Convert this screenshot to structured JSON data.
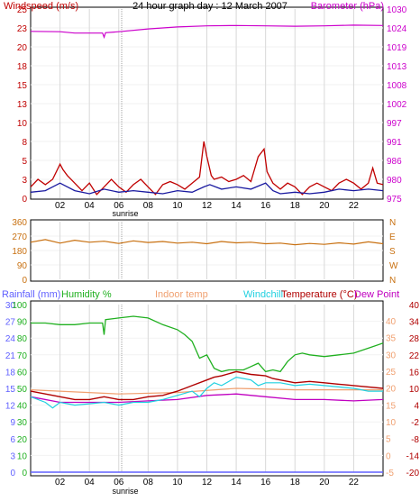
{
  "title": "24 hour graph day : 12 March 2007",
  "sunrise_label": "sunrise",
  "colors": {
    "wind": "#c00000",
    "wind_avg": "#1a1aa0",
    "baro": "#cc00cc",
    "dir": "#c87010",
    "humidity": "#20b020",
    "rain": "#6060ff",
    "indoor": "#f0a070",
    "windchill": "#20d0e0",
    "temp": "#b00000",
    "dewpoint": "#c000c0",
    "grid": "#d8d8d8",
    "sun": "#a0a0a0"
  },
  "x_ticks": [
    "02",
    "04",
    "06",
    "08",
    "10",
    "12",
    "14",
    "16",
    "18",
    "20",
    "22"
  ],
  "chart_data": [
    {
      "type": "line",
      "name": "wind-barometer",
      "left_label": "Windspeed (m/s)",
      "right_label": "Barometer (hPa)",
      "left_ticks": [
        "0",
        "3",
        "5",
        "8",
        "10",
        "13",
        "15",
        "18",
        "20",
        "23",
        "25"
      ],
      "right_ticks": [
        "975",
        "980",
        "986",
        "991",
        "997",
        "1002",
        "1008",
        "1013",
        "1019",
        "1024",
        "1030"
      ],
      "ylim_left": [
        0,
        25
      ],
      "ylim_right": [
        975,
        1030
      ],
      "series": [
        {
          "key": "gust",
          "x": [
            0.0,
            0.5,
            1.0,
            1.5,
            2.0,
            2.2,
            2.5,
            3.0,
            3.5,
            4.0,
            4.5,
            5.0,
            5.5,
            6.0,
            6.5,
            7.0,
            7.5,
            8.0,
            8.5,
            9.0,
            9.5,
            10.0,
            10.5,
            11.0,
            11.5,
            11.8,
            12.0,
            12.3,
            12.5,
            13.0,
            13.5,
            14.0,
            14.5,
            15.0,
            15.5,
            15.9,
            16.1,
            16.5,
            17.0,
            17.5,
            18.0,
            18.5,
            19.0,
            19.5,
            20.0,
            20.5,
            21.0,
            21.5,
            22.0,
            22.5,
            23.0,
            23.3,
            23.6,
            24.0
          ],
          "y": [
            1.5,
            2.5,
            1.8,
            2.5,
            4.5,
            3.8,
            3.0,
            2.0,
            1.0,
            2.0,
            0.5,
            1.5,
            2.5,
            1.5,
            0.8,
            1.8,
            2.5,
            1.5,
            0.5,
            1.8,
            2.2,
            1.8,
            1.2,
            2.0,
            2.8,
            7.5,
            5.5,
            3.0,
            2.5,
            2.8,
            2.2,
            2.5,
            3.0,
            2.2,
            5.5,
            6.5,
            3.5,
            2.0,
            1.2,
            2.0,
            1.5,
            0.5,
            1.5,
            2.0,
            1.5,
            1.0,
            2.0,
            2.5,
            2.0,
            1.2,
            2.0,
            4.0,
            2.0,
            1.8
          ]
        },
        {
          "key": "average",
          "x": [
            0.0,
            1.0,
            2.0,
            3.0,
            4.0,
            5.0,
            6.0,
            7.0,
            8.0,
            9.0,
            10.0,
            11.0,
            11.8,
            12.2,
            13.0,
            14.0,
            15.0,
            16.0,
            16.5,
            17.0,
            18.0,
            19.0,
            20.0,
            21.0,
            22.0,
            23.0,
            24.0
          ],
          "y": [
            0.8,
            1.0,
            2.0,
            1.0,
            0.6,
            1.2,
            0.8,
            1.0,
            0.8,
            0.6,
            1.0,
            0.8,
            1.5,
            1.8,
            1.2,
            1.5,
            1.2,
            2.0,
            1.0,
            0.6,
            0.8,
            0.6,
            0.8,
            1.2,
            1.0,
            1.2,
            1.0
          ]
        },
        {
          "key": "barometer",
          "axis": "right",
          "x": [
            0,
            2,
            3,
            4,
            4.9,
            5.0,
            5.1,
            6,
            8,
            10,
            12,
            14,
            16,
            18,
            20,
            22,
            24
          ],
          "y": [
            1023.5,
            1023.4,
            1023.0,
            1023.0,
            1023.0,
            1021.8,
            1023.1,
            1023.4,
            1024.2,
            1024.8,
            1025.1,
            1025.2,
            1025.1,
            1025.0,
            1025.1,
            1025.3,
            1025.2
          ]
        }
      ]
    },
    {
      "type": "line",
      "name": "wind-direction",
      "left_ticks": [
        "0",
        "90",
        "180",
        "270",
        "360"
      ],
      "right_ticks": [
        "N",
        "W",
        "S",
        "E",
        "N"
      ],
      "ylim": [
        0,
        360
      ],
      "series": [
        {
          "key": "direction",
          "x": [
            0,
            1,
            2,
            3,
            4,
            5,
            6,
            7,
            8,
            9,
            10,
            11,
            12,
            13,
            14,
            15,
            16,
            17,
            18,
            19,
            20,
            21,
            22,
            23,
            24
          ],
          "y": [
            232,
            248,
            226,
            244,
            232,
            238,
            224,
            240,
            230,
            236,
            226,
            232,
            222,
            236,
            228,
            232,
            222,
            226,
            216,
            224,
            218,
            228,
            220,
            234,
            222
          ]
        }
      ]
    },
    {
      "type": "line",
      "name": "temperature-humidity",
      "top_labels": [
        "Rainfall (mm)",
        "Humidity %",
        "Indoor temp",
        "Windchill",
        "Temperature (°C)",
        "Dew Point"
      ],
      "rain_ticks": [
        "0",
        "3",
        "6",
        "9",
        "12",
        "15",
        "18",
        "21",
        "24",
        "27",
        "30"
      ],
      "humidity_ticks": [
        "0",
        "10",
        "20",
        "30",
        "40",
        "50",
        "60",
        "70",
        "80",
        "90",
        "100"
      ],
      "indoor_ticks": [
        "-5",
        "0",
        "5",
        "10",
        "15",
        "20",
        "25",
        "30",
        "35",
        "40"
      ],
      "temp_ticks": [
        "-20",
        "-14",
        "-8",
        "-2",
        "4",
        "10",
        "16",
        "22",
        "28",
        "34",
        "40"
      ],
      "ylim_humidity": [
        0,
        100
      ],
      "ylim_temp": [
        -20,
        40
      ],
      "series": [
        {
          "key": "humidity",
          "x": [
            0,
            1,
            2,
            3,
            4,
            4.9,
            5.0,
            5.1,
            6,
            7,
            8,
            9,
            10,
            10.5,
            11,
            11.5,
            12,
            12.5,
            13,
            13.5,
            14,
            14.5,
            15,
            15.5,
            16,
            16.5,
            17,
            17.5,
            18,
            18.5,
            19,
            20,
            21,
            22,
            23,
            24
          ],
          "y": [
            89,
            89,
            88,
            88,
            89,
            89,
            82,
            91,
            92,
            93,
            92,
            88,
            85,
            82,
            78,
            68,
            70,
            62,
            60,
            61,
            61,
            61,
            63,
            65,
            60,
            61,
            60,
            66,
            70,
            71,
            70,
            69,
            70,
            71,
            74,
            77
          ]
        },
        {
          "key": "temperature",
          "x": [
            0,
            1,
            2,
            3,
            4,
            5,
            6,
            7,
            8,
            9,
            10,
            11,
            12,
            12.5,
            13,
            14,
            15,
            16,
            16.5,
            17,
            18,
            19,
            20,
            21,
            22,
            23,
            24
          ],
          "y": [
            9,
            8,
            7,
            6,
            6,
            7,
            6,
            6,
            7,
            7.5,
            9,
            11,
            13,
            14,
            14.5,
            16,
            15,
            14.5,
            13.5,
            13,
            12,
            12.5,
            12,
            11.5,
            11,
            10.5,
            10
          ]
        },
        {
          "key": "windchill",
          "x": [
            0,
            1,
            1.5,
            2,
            3,
            4,
            5,
            6,
            7,
            8,
            9,
            10,
            11,
            11.5,
            12,
            12.5,
            13,
            14,
            15,
            15.5,
            16,
            17,
            18,
            19,
            20,
            21,
            22,
            23,
            24
          ],
          "y": [
            7,
            5,
            3,
            5,
            4,
            4.5,
            5,
            4,
            5,
            5,
            6,
            7.5,
            9,
            7,
            10,
            12,
            11,
            14,
            13,
            11,
            12,
            12,
            11,
            11.5,
            11,
            10.5,
            10,
            9,
            9
          ]
        },
        {
          "key": "indoor",
          "x": [
            0,
            6,
            10,
            14,
            18,
            24
          ],
          "y": [
            9.5,
            8,
            8.5,
            10,
            9.5,
            9.5
          ]
        },
        {
          "key": "dewpoint",
          "x": [
            0,
            2,
            4,
            6,
            8,
            10,
            12,
            14,
            16,
            18,
            20,
            22,
            24
          ],
          "y": [
            7,
            5,
            5,
            5,
            5.5,
            6,
            7.5,
            8,
            7,
            6,
            6,
            5.5,
            6
          ]
        }
      ]
    }
  ]
}
